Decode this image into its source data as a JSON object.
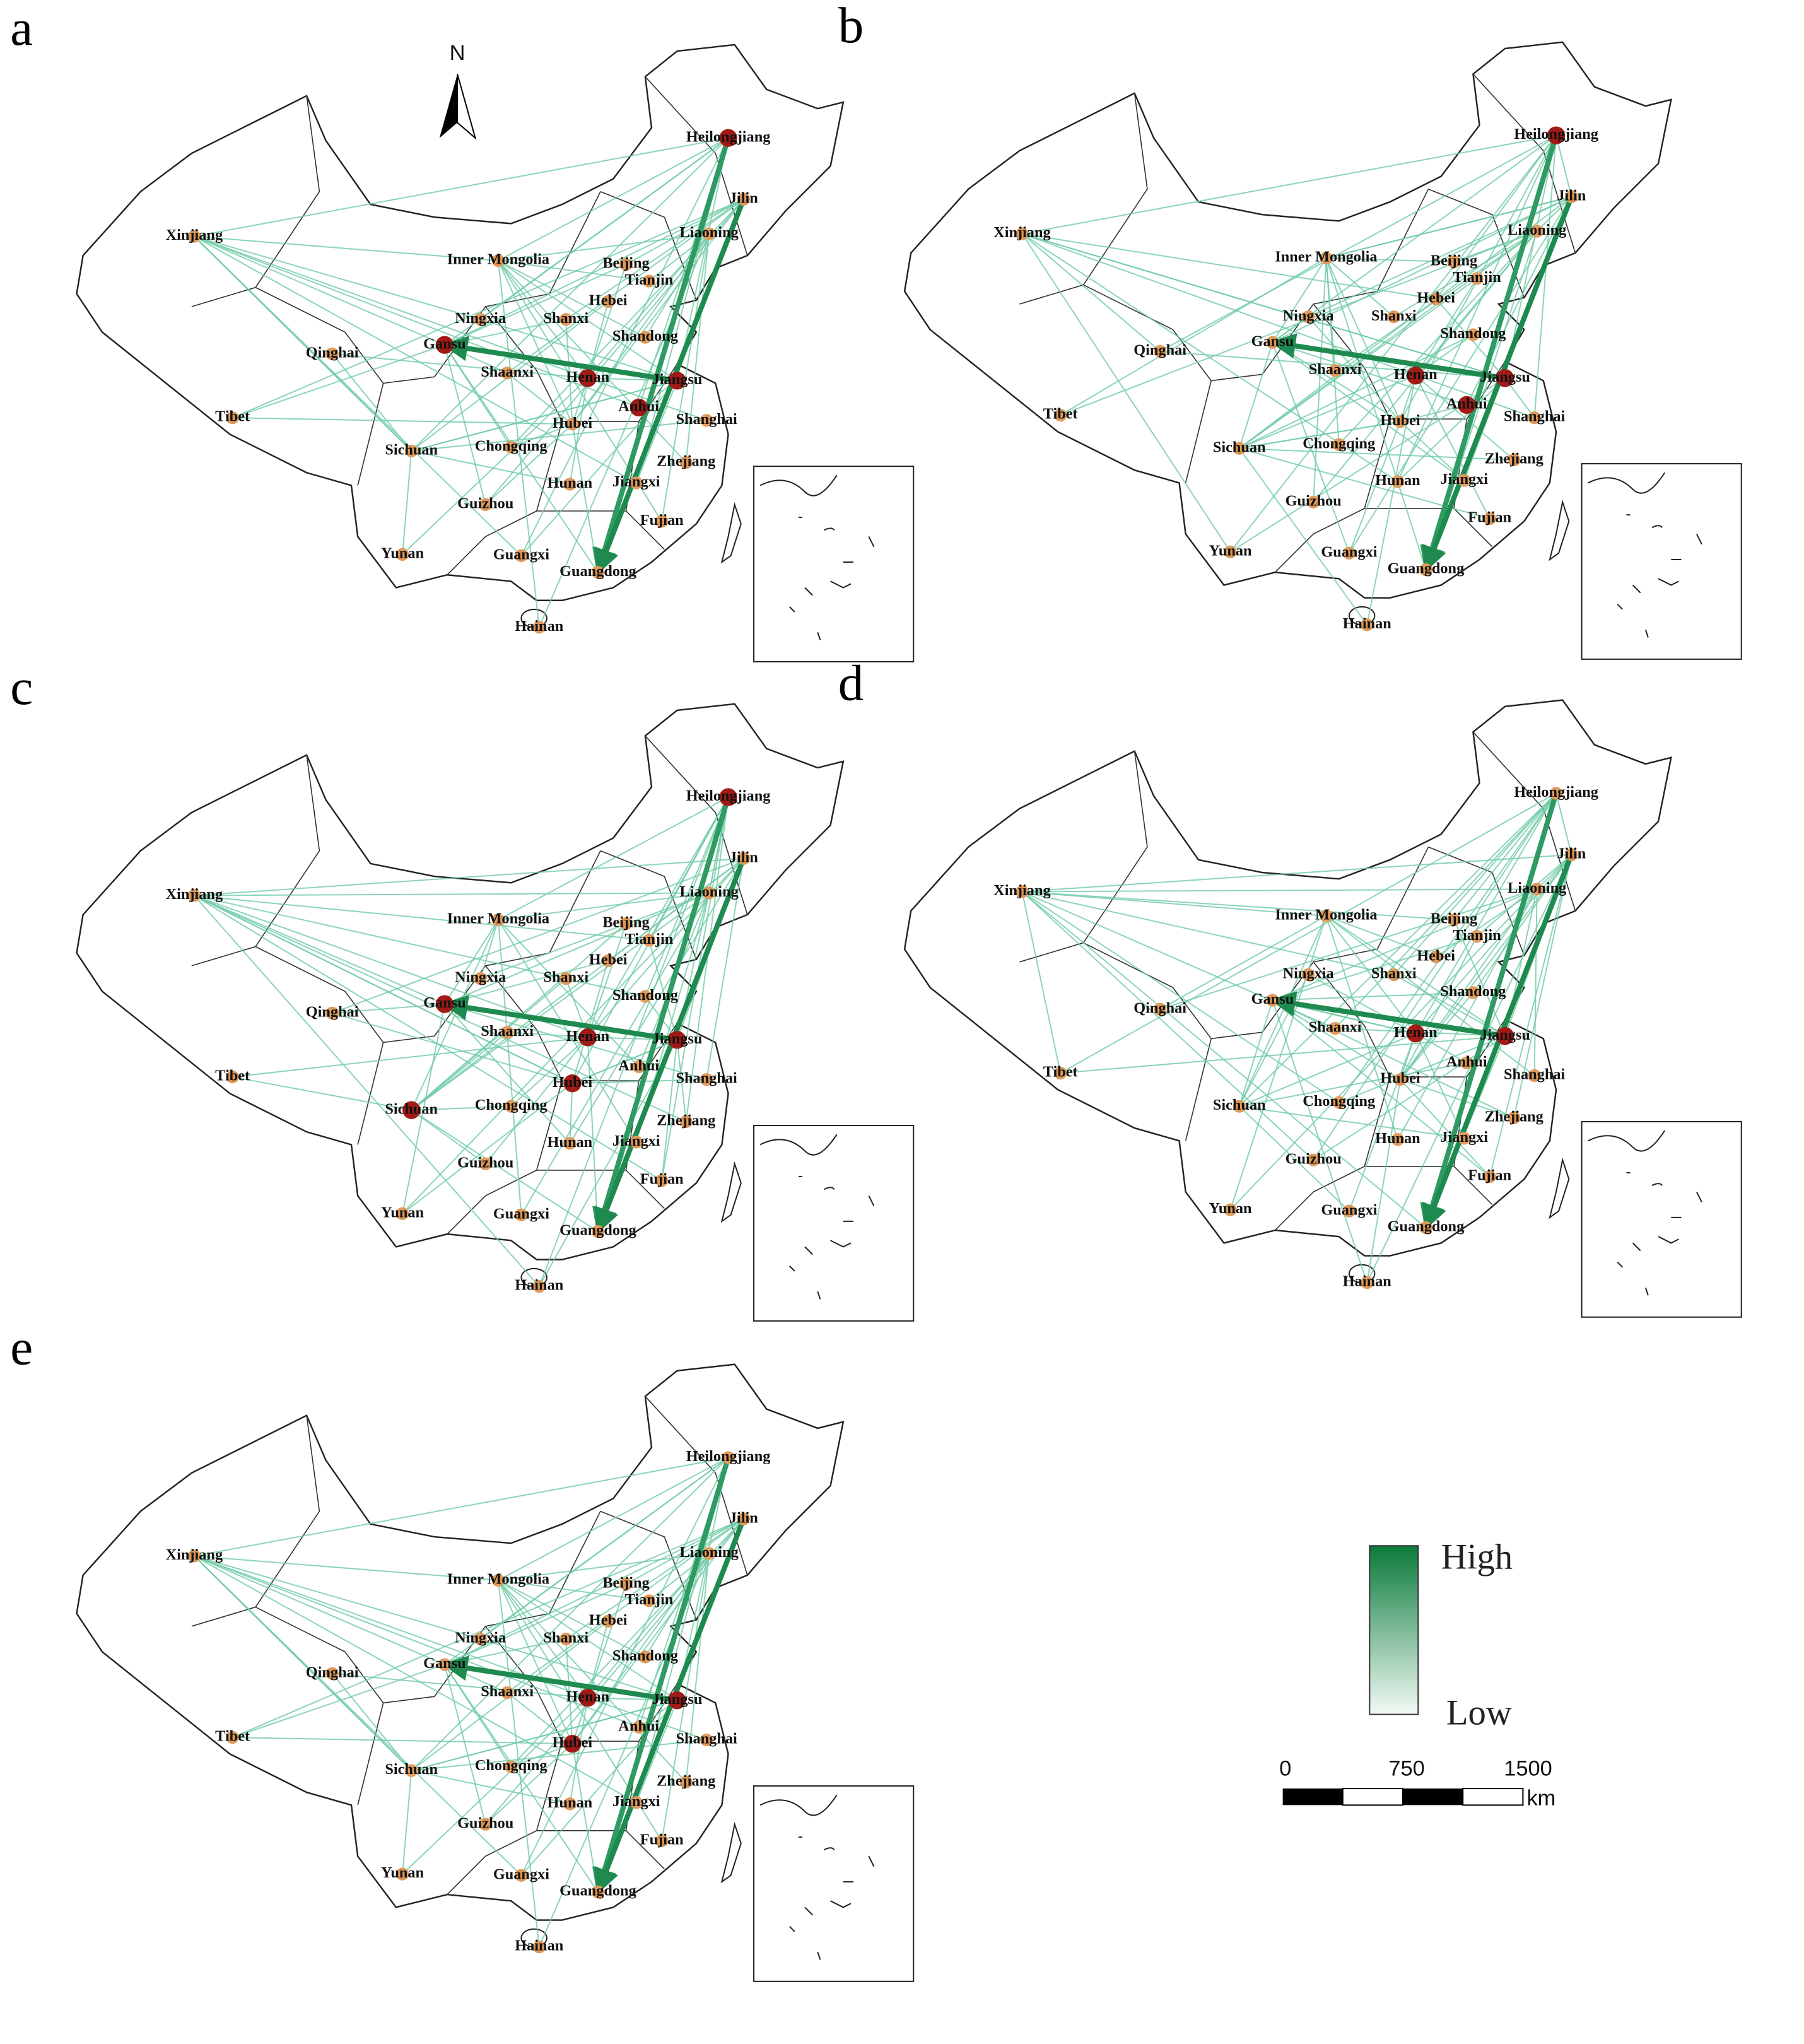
{
  "panels": [
    {
      "letter": "a",
      "provinces": [
        "Heilongjiang",
        "Jilin",
        "Liaoning",
        "Xinjiang",
        "Inner Mongolia",
        "Beijing",
        "Tianjin",
        "Hebei",
        "Ningxia",
        "Shanxi",
        "Shandong",
        "Qinghai",
        "Gansu",
        "Shaanxi",
        "Henan",
        "Jiangsu",
        "Anhui",
        "Tibet",
        "Hubei",
        "Shanghai",
        "Sichuan",
        "Chongqing",
        "Zhejiang",
        "Hunan",
        "Jiangxi",
        "Guizhou",
        "Fujian",
        "Yunan",
        "Guangxi",
        "Guangdong",
        "Hainan"
      ]
    },
    {
      "letter": "b",
      "provinces": [
        "Heilongjiang",
        "Jilin",
        "Liaoning",
        "Xinjiang",
        "Inner Mongolia",
        "Beijing",
        "Tianjin",
        "Hebei",
        "Ningxia",
        "Shanxi",
        "Shandong",
        "Qinghai",
        "Gansu",
        "Shaanxi",
        "Henan",
        "Jiangsu",
        "Anhui",
        "Tibet",
        "Hubei",
        "Shanghai",
        "Sichuan",
        "Chongqing",
        "Zhejiang",
        "Hunan",
        "Jiangxi",
        "Guizhou",
        "Fujian",
        "Yunan",
        "Guangxi",
        "Guangdong",
        "Hainan"
      ]
    },
    {
      "letter": "c",
      "provinces": [
        "Heilongjiang",
        "Jilin",
        "Liaoning",
        "Xinjiang",
        "Inner Mongolia",
        "Beijing",
        "Tianjin",
        "Hebei",
        "Ningxia",
        "Shanxi",
        "Shandong",
        "Qinghai",
        "Gansu",
        "Shaanxi",
        "Henan",
        "Jiangsu",
        "Anhui",
        "Tibet",
        "Hubei",
        "Shanghai",
        "Sichuan",
        "Chongqing",
        "Zhejiang",
        "Hunan",
        "Jiangxi",
        "Guizhou",
        "Fujian",
        "Yunan",
        "Guangxi",
        "Guangdong",
        "Hainan"
      ]
    },
    {
      "letter": "d",
      "provinces": [
        "Heilongjiang",
        "Jilin",
        "Liaoning",
        "Xinjiang",
        "Inner Mongolia",
        "Beijing",
        "Tianjin",
        "Hebei",
        "Ningxia",
        "Shanxi",
        "Shandong",
        "Qinghai",
        "Gansu",
        "Shaanxi",
        "Henan",
        "Jiangsu",
        "Anhui",
        "Tibet",
        "Hubei",
        "Shanghai",
        "Sichuan",
        "Chongqing",
        "Zhejiang",
        "Hunan",
        "Jiangxi",
        "Guizhou",
        "Fujian",
        "Yunan",
        "Guangxi",
        "Guangdong",
        "Hainan"
      ]
    },
    {
      "letter": "e",
      "provinces": [
        "Heilongjiang",
        "Jilin",
        "Liaoning",
        "Xinjiang",
        "Inner Mongolia",
        "Beijing",
        "Tianjin",
        "Hebei",
        "Ningxia",
        "Shanxi",
        "Shandong",
        "Qinghai",
        "Gansu",
        "Shaanxi",
        "Henan",
        "Jiangsu",
        "Anhui",
        "Tibet",
        "Hubei",
        "Shanghai",
        "Sichuan",
        "Chongqing",
        "Zhejiang",
        "Hunan",
        "Jiangxi",
        "Guizhou",
        "Fujian",
        "Yunan",
        "Guangxi",
        "Guangdong",
        "Hainan"
      ]
    }
  ],
  "north": "N",
  "legend": {
    "high": "High",
    "low": "Low"
  },
  "scale": {
    "ticks": [
      0,
      750,
      1500
    ],
    "unit": "km"
  }
}
